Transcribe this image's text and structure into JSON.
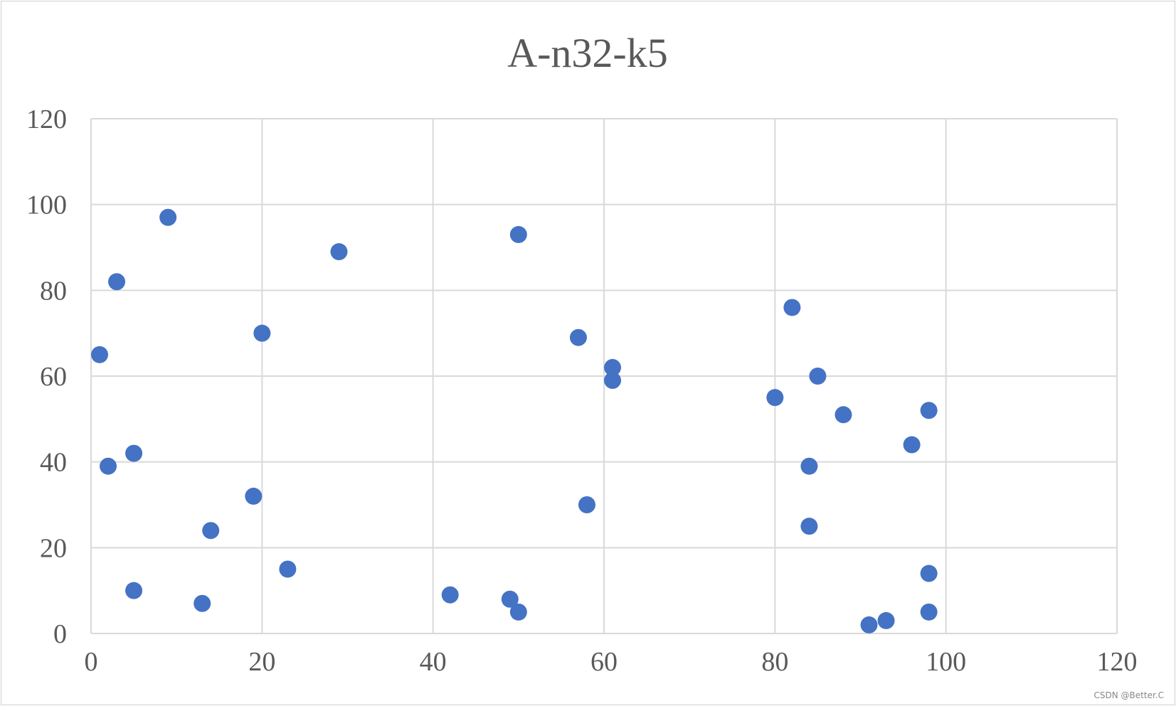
{
  "chart_data": {
    "type": "scatter",
    "title": "A-n32-k5",
    "xlabel": "",
    "ylabel": "",
    "xlim": [
      0,
      120
    ],
    "ylim": [
      0,
      120
    ],
    "x_ticks": [
      "0",
      "20",
      "40",
      "60",
      "80",
      "100",
      "120"
    ],
    "y_ticks": [
      "0",
      "20",
      "40",
      "60",
      "80",
      "100",
      "120"
    ],
    "grid": true,
    "legend": "none",
    "marker_color": "#4472C4",
    "points": [
      {
        "x": 1,
        "y": 65
      },
      {
        "x": 2,
        "y": 39
      },
      {
        "x": 3,
        "y": 82
      },
      {
        "x": 5,
        "y": 42
      },
      {
        "x": 5,
        "y": 10
      },
      {
        "x": 9,
        "y": 97
      },
      {
        "x": 13,
        "y": 7
      },
      {
        "x": 14,
        "y": 24
      },
      {
        "x": 19,
        "y": 32
      },
      {
        "x": 20,
        "y": 70
      },
      {
        "x": 23,
        "y": 15
      },
      {
        "x": 29,
        "y": 89
      },
      {
        "x": 42,
        "y": 9
      },
      {
        "x": 49,
        "y": 8
      },
      {
        "x": 50,
        "y": 93
      },
      {
        "x": 50,
        "y": 5
      },
      {
        "x": 57,
        "y": 69
      },
      {
        "x": 58,
        "y": 30
      },
      {
        "x": 61,
        "y": 62
      },
      {
        "x": 61,
        "y": 59
      },
      {
        "x": 80,
        "y": 55
      },
      {
        "x": 82,
        "y": 76
      },
      {
        "x": 84,
        "y": 39
      },
      {
        "x": 84,
        "y": 25
      },
      {
        "x": 85,
        "y": 60
      },
      {
        "x": 88,
        "y": 51
      },
      {
        "x": 91,
        "y": 2
      },
      {
        "x": 93,
        "y": 3
      },
      {
        "x": 96,
        "y": 44
      },
      {
        "x": 98,
        "y": 52
      },
      {
        "x": 98,
        "y": 14
      },
      {
        "x": 98,
        "y": 5
      }
    ]
  },
  "watermark": "CSDN @Better.C"
}
